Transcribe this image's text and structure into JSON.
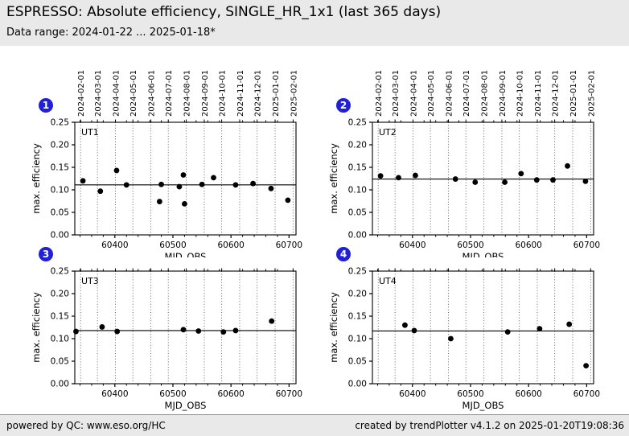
{
  "header": {
    "title": "ESPRESSO: Absolute efficiency, SINGLE_HR_1x1 (last 365 days)",
    "subtitle": "Data range: 2024-01-22 ... 2025-01-18*"
  },
  "footer": {
    "left": "powered by QC: www.eso.org/HC",
    "right": "created by trendPlotter v4.1.2 on 2025-01-20T19:08:36"
  },
  "colors": {
    "band_bg": "#e9e9e9",
    "badge_blue": "#2020d8",
    "point_color": "#000000",
    "grid_color": "#555555"
  },
  "axes_shared": {
    "x_label": "MJD_OBS",
    "y_label": "max. efficiency",
    "xlim": [
      60331,
      60712
    ],
    "ylim": [
      0,
      0.25
    ],
    "x_major_ticks": [
      60400,
      60500,
      60600,
      60700
    ],
    "x_minor_tick_step": 20,
    "y_ticks": [
      "0.00",
      "0.05",
      "0.10",
      "0.15",
      "0.20",
      "0.25"
    ],
    "grid_style": "vertical-dotted-at-month-starts",
    "month_gridlines": [
      {
        "mjd": 60341,
        "label": "2024-02-01"
      },
      {
        "mjd": 60370,
        "label": "2024-03-01"
      },
      {
        "mjd": 60401,
        "label": "2024-04-01"
      },
      {
        "mjd": 60431,
        "label": "2024-05-01"
      },
      {
        "mjd": 60462,
        "label": "2024-06-01"
      },
      {
        "mjd": 60492,
        "label": "2024-07-01"
      },
      {
        "mjd": 60523,
        "label": "2024-08-01"
      },
      {
        "mjd": 60554,
        "label": "2024-09-01"
      },
      {
        "mjd": 60584,
        "label": "2024-10-01"
      },
      {
        "mjd": 60615,
        "label": "2024-11-01"
      },
      {
        "mjd": 60645,
        "label": "2024-12-01"
      },
      {
        "mjd": 60676,
        "label": "2025-01-01"
      },
      {
        "mjd": 60707,
        "label": "2025-02-01"
      }
    ]
  },
  "chart_data": [
    {
      "type": "scatter",
      "title": "UT1",
      "badge": "1",
      "xlabel": "MJD_OBS",
      "ylabel": "max. efficiency",
      "xlim": [
        60331,
        60712
      ],
      "ylim": [
        0,
        0.25
      ],
      "show_top_date_labels": true,
      "mean_line": 0.111,
      "points": [
        [
          60345,
          0.12
        ],
        [
          60375,
          0.097
        ],
        [
          60403,
          0.143
        ],
        [
          60420,
          0.111
        ],
        [
          60477,
          0.074
        ],
        [
          60480,
          0.112
        ],
        [
          60511,
          0.107
        ],
        [
          60518,
          0.133
        ],
        [
          60520,
          0.069
        ],
        [
          60550,
          0.112
        ],
        [
          60570,
          0.127
        ],
        [
          60608,
          0.111
        ],
        [
          60638,
          0.114
        ],
        [
          60669,
          0.103
        ],
        [
          60698,
          0.077
        ]
      ]
    },
    {
      "type": "scatter",
      "title": "UT2",
      "badge": "2",
      "xlabel": "MJD_OBS",
      "ylabel": "max. efficiency",
      "xlim": [
        60331,
        60712
      ],
      "ylim": [
        0,
        0.25
      ],
      "show_top_date_labels": true,
      "mean_line": 0.124,
      "points": [
        [
          60345,
          0.131
        ],
        [
          60376,
          0.127
        ],
        [
          60405,
          0.132
        ],
        [
          60474,
          0.124
        ],
        [
          60508,
          0.117
        ],
        [
          60559,
          0.117
        ],
        [
          60587,
          0.136
        ],
        [
          60614,
          0.122
        ],
        [
          60642,
          0.122
        ],
        [
          60667,
          0.153
        ],
        [
          60698,
          0.119
        ]
      ]
    },
    {
      "type": "scatter",
      "title": "UT3",
      "badge": "3",
      "xlabel": "MJD_OBS",
      "ylabel": "max. efficiency",
      "xlim": [
        60331,
        60712
      ],
      "ylim": [
        0,
        0.25
      ],
      "show_top_date_labels": false,
      "mean_line": 0.118,
      "points": [
        [
          60333,
          0.116
        ],
        [
          60378,
          0.126
        ],
        [
          60404,
          0.116
        ],
        [
          60518,
          0.12
        ],
        [
          60544,
          0.117
        ],
        [
          60587,
          0.115
        ],
        [
          60608,
          0.118
        ],
        [
          60670,
          0.139
        ]
      ]
    },
    {
      "type": "scatter",
      "title": "UT4",
      "badge": "4",
      "xlabel": "MJD_OBS",
      "ylabel": "max. efficiency",
      "xlim": [
        60331,
        60712
      ],
      "ylim": [
        0,
        0.25
      ],
      "show_top_date_labels": false,
      "mean_line": 0.117,
      "points": [
        [
          60387,
          0.13
        ],
        [
          60403,
          0.118
        ],
        [
          60466,
          0.1
        ],
        [
          60564,
          0.115
        ],
        [
          60619,
          0.122
        ],
        [
          60670,
          0.132
        ],
        [
          60699,
          0.04
        ]
      ]
    }
  ]
}
